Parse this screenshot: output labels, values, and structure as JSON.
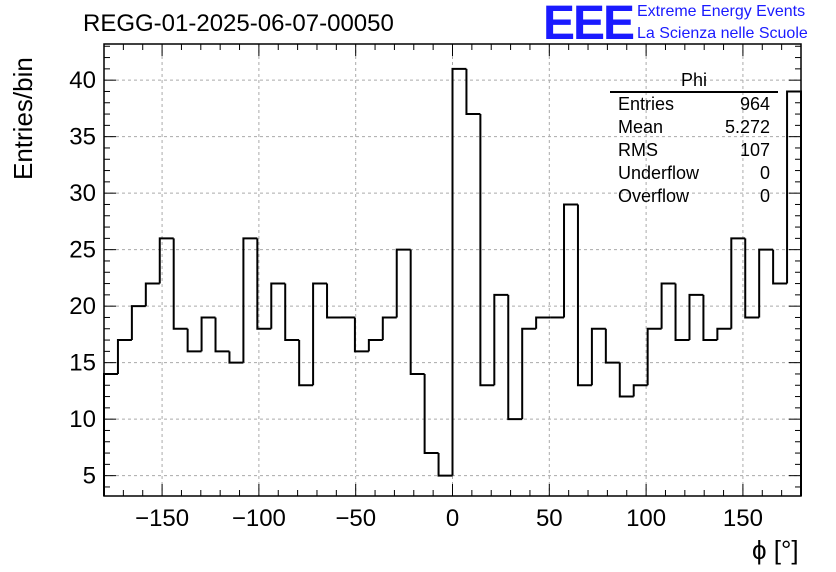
{
  "header": {
    "title": "REGG-01-2025-06-07-00050",
    "logo": "EEE",
    "subtitle_line1": "Extreme Energy Events",
    "subtitle_line2": "La Scienza nelle Scuole"
  },
  "stats": {
    "name": "Phi",
    "rows": [
      {
        "label": "Entries",
        "value": "964"
      },
      {
        "label": "Mean",
        "value": "5.272"
      },
      {
        "label": "RMS",
        "value": "107"
      },
      {
        "label": "Underflow",
        "value": "0"
      },
      {
        "label": "Overflow",
        "value": "0"
      }
    ]
  },
  "chart_data": {
    "type": "bar",
    "style": "step-histogram",
    "title": "REGG-01-2025-06-07-00050",
    "xlabel": "ϕ [°]",
    "ylabel": "Entries/bin",
    "xlim": [
      -180,
      180
    ],
    "ylim": [
      3.2,
      43.2
    ],
    "grid": true,
    "bin_width": 7.2,
    "bin_edges_start": -180,
    "values": [
      14,
      17,
      20,
      22,
      26,
      18,
      16,
      19,
      16,
      15,
      26,
      18,
      22,
      17,
      13,
      22,
      19,
      19,
      16,
      17,
      19,
      25,
      14,
      7,
      5,
      41,
      37,
      13,
      21,
      10,
      18,
      19,
      19,
      29,
      13,
      18,
      15,
      12,
      13,
      18,
      22,
      17,
      21,
      17,
      18,
      26,
      19,
      25,
      22,
      39
    ],
    "xticks": [
      -150,
      -100,
      -50,
      0,
      50,
      100,
      150
    ],
    "xtick_labels": [
      "−150",
      "−100",
      "−50",
      "0",
      "50",
      "100",
      "150"
    ],
    "yticks": [
      5,
      10,
      15,
      20,
      25,
      30,
      35,
      40
    ],
    "ytick_labels": [
      "5",
      "10",
      "15",
      "20",
      "25",
      "30",
      "35",
      "40"
    ]
  }
}
